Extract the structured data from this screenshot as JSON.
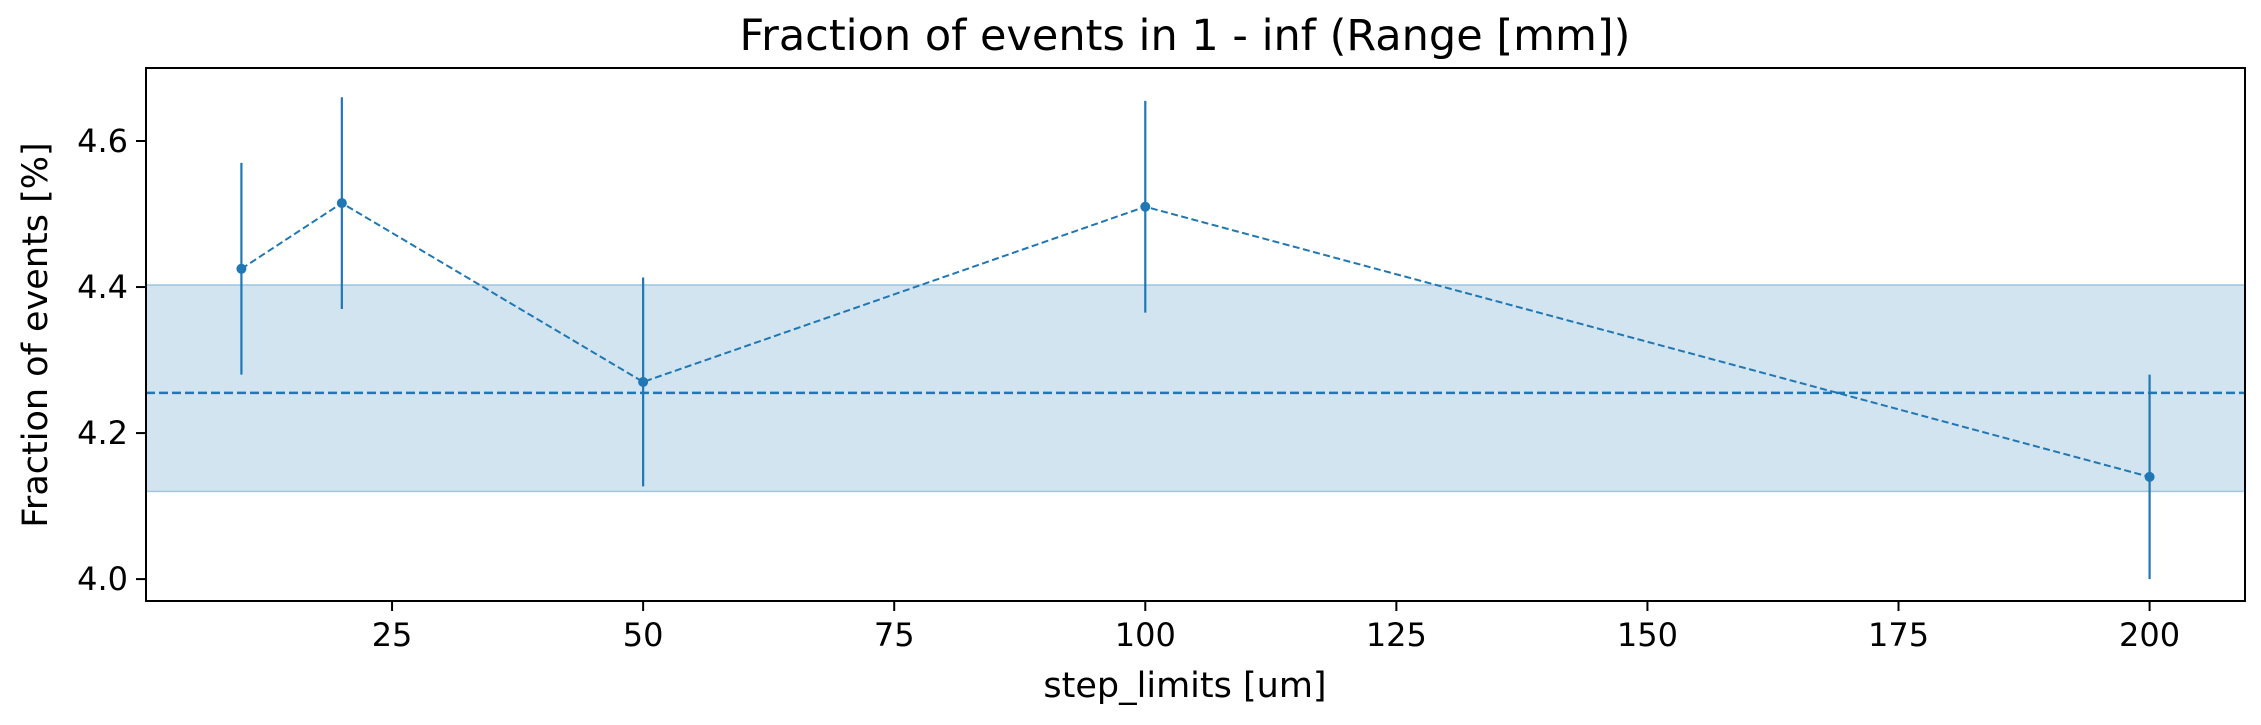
{
  "chart_data": {
    "type": "line",
    "title": "Fraction of events in 1 - inf (Range [mm])",
    "xlabel": "step_limits [um]",
    "ylabel": "Fraction of events [%]",
    "xlim": [
      0.5,
      209.5
    ],
    "ylim": [
      3.97,
      4.7
    ],
    "xticks": [
      25,
      50,
      75,
      100,
      125,
      150,
      175,
      200
    ],
    "yticks": [
      4.0,
      4.2,
      4.4,
      4.6
    ],
    "ytick_labels": [
      "4.0",
      "4.2",
      "4.4",
      "4.6"
    ],
    "series": [
      {
        "x": [
          10,
          20,
          50,
          100,
          200
        ],
        "y": [
          4.425,
          4.515,
          4.27,
          4.51,
          4.14
        ],
        "yerr": [
          0.145,
          0.145,
          0.143,
          0.145,
          0.14
        ],
        "line_style": "dashed",
        "marker": "circle"
      }
    ],
    "mean_line": 4.255,
    "band": [
      4.12,
      4.403
    ],
    "grid": false,
    "colors": {
      "series": "#1f77b4",
      "band": "#1f77b4",
      "band_opacity": 0.2
    }
  }
}
